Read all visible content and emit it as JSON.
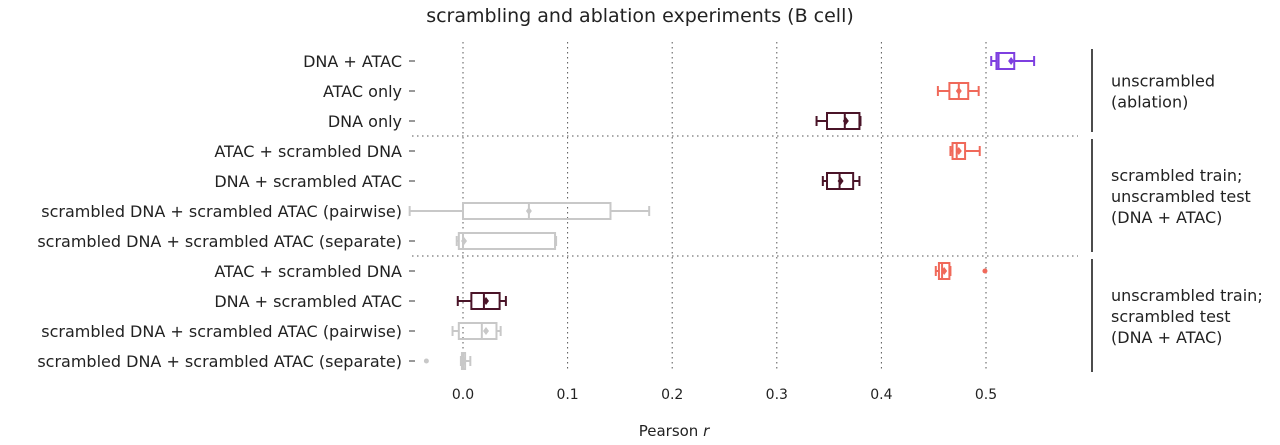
{
  "chart_data": {
    "type": "box",
    "title": "scrambling and ablation experiments (B cell)",
    "xlabel": "Pearson",
    "xlabel_italic": "r",
    "ylabel": "",
    "xlim": [
      -0.05,
      0.57
    ],
    "xticks": [
      0.0,
      0.1,
      0.2,
      0.3,
      0.4,
      0.5
    ],
    "xtick_labels": [
      "0.0",
      "0.1",
      "0.2",
      "0.3",
      "0.4",
      "0.5"
    ],
    "grid": "vertical dotted",
    "colors": {
      "purple": "#7e3fe0",
      "coral": "#f0695a",
      "maroon": "#4a1428",
      "gray": "#c8c8c8"
    },
    "groups": [
      {
        "label_lines": [
          "unscrambled",
          "(ablation)"
        ],
        "rows": [
          {
            "label": "DNA + ATAC",
            "color": "purple",
            "min": 0.505,
            "q1": 0.51,
            "median": 0.512,
            "mean": 0.524,
            "q3": 0.527,
            "max": 0.546,
            "outliers": []
          },
          {
            "label": "ATAC only",
            "color": "coral",
            "min": 0.454,
            "q1": 0.465,
            "median": 0.474,
            "mean": 0.474,
            "q3": 0.483,
            "max": 0.493,
            "outliers": []
          },
          {
            "label": "DNA only",
            "color": "maroon",
            "min": 0.338,
            "q1": 0.348,
            "median": 0.365,
            "mean": 0.366,
            "q3": 0.379,
            "max": 0.38,
            "outliers": []
          }
        ]
      },
      {
        "label_lines": [
          "scrambled train;",
          "unscrambled test",
          "(DNA + ATAC)"
        ],
        "rows": [
          {
            "label": "ATAC + scrambled DNA",
            "color": "coral",
            "min": 0.466,
            "q1": 0.468,
            "median": 0.472,
            "mean": 0.474,
            "q3": 0.48,
            "max": 0.494,
            "outliers": []
          },
          {
            "label": "DNA + scrambled ATAC",
            "color": "maroon",
            "min": 0.344,
            "q1": 0.348,
            "median": 0.36,
            "mean": 0.361,
            "q3": 0.373,
            "max": 0.379,
            "outliers": []
          },
          {
            "label": "scrambled DNA + scrambled ATAC (pairwise)",
            "color": "gray",
            "min": -0.051,
            "q1": 0.0,
            "median": 0.063,
            "mean": 0.063,
            "q3": 0.141,
            "max": 0.178,
            "outliers": []
          },
          {
            "label": "scrambled DNA + scrambled ATAC (separate)",
            "color": "gray",
            "min": -0.006,
            "q1": -0.004,
            "median": 0.0,
            "mean": 0.001,
            "q3": 0.088,
            "max": 0.089,
            "outliers": []
          }
        ]
      },
      {
        "label_lines": [
          "unscrambled train;",
          "scrambled test",
          "(DNA + ATAC)"
        ],
        "rows": [
          {
            "label": "ATAC + scrambled DNA",
            "color": "coral",
            "min": 0.452,
            "q1": 0.455,
            "median": 0.458,
            "mean": 0.46,
            "q3": 0.465,
            "max": 0.466,
            "outliers": [
              0.499
            ]
          },
          {
            "label": "DNA + scrambled ATAC",
            "color": "maroon",
            "min": -0.005,
            "q1": 0.008,
            "median": 0.02,
            "mean": 0.022,
            "q3": 0.035,
            "max": 0.041,
            "outliers": []
          },
          {
            "label": "scrambled DNA + scrambled ATAC (pairwise)",
            "color": "gray",
            "min": -0.01,
            "q1": -0.004,
            "median": 0.018,
            "mean": 0.022,
            "q3": 0.032,
            "max": 0.036,
            "outliers": []
          },
          {
            "label": "scrambled DNA + scrambled ATAC (separate)",
            "color": "gray",
            "min": -0.002,
            "q1": -0.001,
            "median": 0.0,
            "mean": 0.001,
            "q3": 0.002,
            "max": 0.007,
            "outliers": [
              -0.035
            ]
          }
        ]
      }
    ]
  }
}
